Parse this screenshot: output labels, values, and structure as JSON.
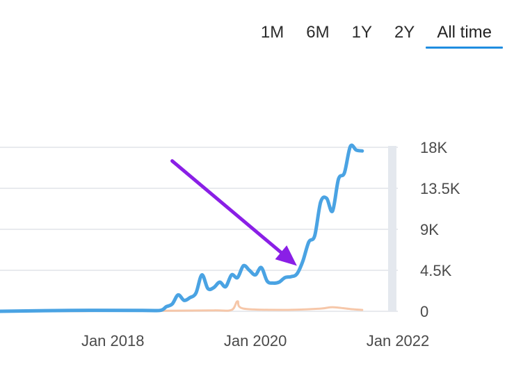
{
  "range_tabs": [
    {
      "label": "1M"
    },
    {
      "label": "6M"
    },
    {
      "label": "1Y"
    },
    {
      "label": "2Y"
    },
    {
      "label": "All time",
      "active": true
    }
  ],
  "colors": {
    "series_primary": "#4aa3e3",
    "series_secondary": "#f6c7a9",
    "grid": "#e8eaee",
    "annotation_arrow": "#8a1fe6",
    "active_tab_underline": "#1f8de0"
  },
  "chart_data": {
    "type": "line",
    "y_ticks": [
      "18K",
      "13.5K",
      "9K",
      "4.5K",
      "0"
    ],
    "y_tick_values": [
      18000,
      13500,
      9000,
      4500,
      0
    ],
    "ylim": [
      0,
      18000
    ],
    "x_ticks": [
      "Jan 2018",
      "Jan 2020",
      "Jan 2022"
    ],
    "x_tick_values": [
      "2018-01",
      "2020-01",
      "2022-01"
    ],
    "xlim": [
      "2016-06",
      "2022-01"
    ],
    "grid": true,
    "annotation": {
      "type": "arrow",
      "from": [
        "2018-11",
        16500
      ],
      "to": [
        "2020-08",
        5000
      ]
    },
    "series": [
      {
        "color": "#4aa3e3",
        "points": [
          [
            "2016-06",
            0
          ],
          [
            "2017-06",
            100
          ],
          [
            "2018-06",
            100
          ],
          [
            "2018-09",
            100
          ],
          [
            "2018-10",
            500
          ],
          [
            "2018-11",
            800
          ],
          [
            "2018-12",
            1800
          ],
          [
            "2019-01",
            1200
          ],
          [
            "2019-02",
            1500
          ],
          [
            "2019-03",
            2000
          ],
          [
            "2019-04",
            4000
          ],
          [
            "2019-05",
            2500
          ],
          [
            "2019-06",
            2600
          ],
          [
            "2019-07",
            3200
          ],
          [
            "2019-08",
            2700
          ],
          [
            "2019-09",
            4000
          ],
          [
            "2019-10",
            3700
          ],
          [
            "2019-11",
            5000
          ],
          [
            "2019-12",
            4500
          ],
          [
            "2020-01",
            4000
          ],
          [
            "2020-02",
            4800
          ],
          [
            "2020-03",
            3300
          ],
          [
            "2020-04",
            3100
          ],
          [
            "2020-05",
            3200
          ],
          [
            "2020-06",
            3700
          ],
          [
            "2020-07",
            3800
          ],
          [
            "2020-08",
            4100
          ],
          [
            "2020-09",
            5500
          ],
          [
            "2020-10",
            7600
          ],
          [
            "2020-11",
            8300
          ],
          [
            "2020-12",
            12000
          ],
          [
            "2021-01",
            12400
          ],
          [
            "2021-02",
            11000
          ],
          [
            "2021-03",
            14500
          ],
          [
            "2021-04",
            15200
          ],
          [
            "2021-05",
            18100
          ],
          [
            "2021-06",
            17700
          ],
          [
            "2021-07",
            17600
          ]
        ]
      },
      {
        "color": "#f6c7a9",
        "points": [
          [
            "2016-06",
            0
          ],
          [
            "2018-09",
            50
          ],
          [
            "2019-06",
            100
          ],
          [
            "2019-09",
            150
          ],
          [
            "2019-10",
            1100
          ],
          [
            "2019-11",
            300
          ],
          [
            "2020-06",
            150
          ],
          [
            "2020-12",
            300
          ],
          [
            "2021-02",
            450
          ],
          [
            "2021-05",
            250
          ],
          [
            "2021-07",
            150
          ]
        ]
      }
    ]
  }
}
